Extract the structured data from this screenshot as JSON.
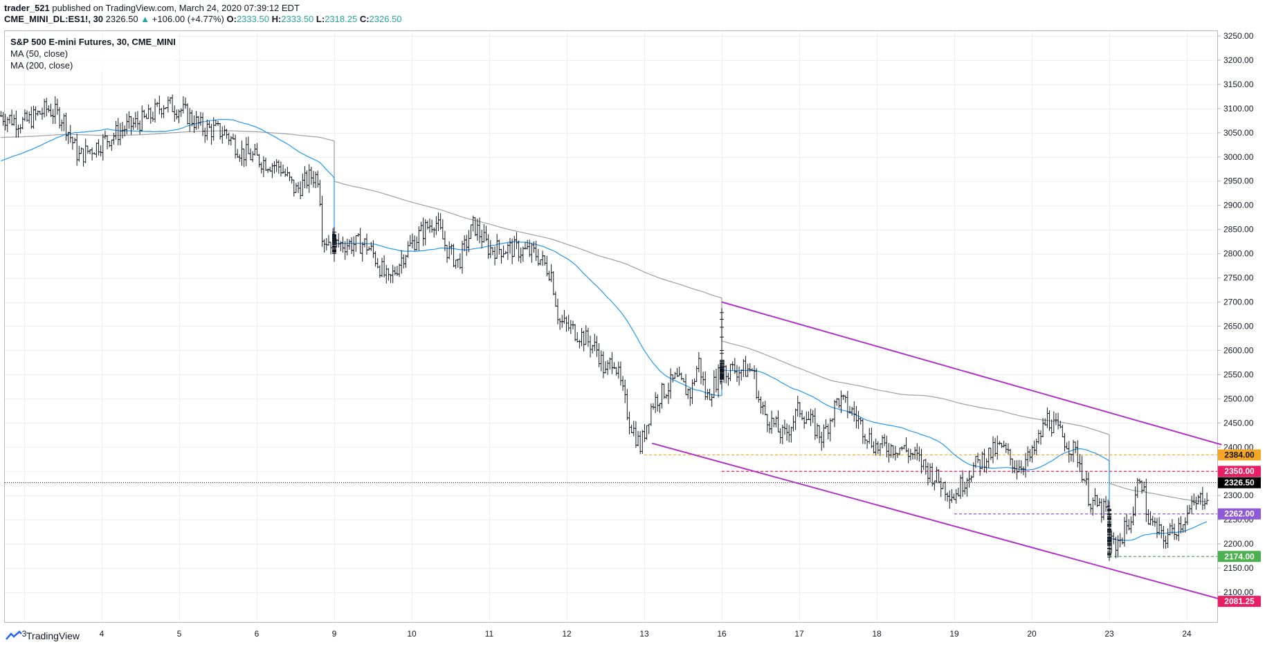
{
  "header": {
    "author": "trader_521",
    "published": "published on TradingView.com, March 24, 2020 07:39:12 EDT",
    "symbol": "CME_MINI_DL:ES1!, 30",
    "last": "2326.50",
    "change_arrow": "▲",
    "change": "+106.00 (+4.77%)",
    "o_label": "O:",
    "o": "2333.50",
    "h_label": "H:",
    "h": "2333.50",
    "l_label": "L:",
    "l": "2318.25",
    "c_label": "C:",
    "c": "2326.50"
  },
  "legend": {
    "title": "S&P 500 E-mini Futures, 30, CME_MINI",
    "ma50": "MA (50, close)",
    "ma200": "MA (200, close)"
  },
  "brand": {
    "label": "TradingView",
    "icon": "tradingview-logo-icon"
  },
  "colors": {
    "bars": "#131722",
    "ma50": "#2196f3",
    "ma200": "#9e9e9e",
    "channel": "#b030c8",
    "level_orange": "#f5a623",
    "level_pink": "#e91e63",
    "level_purple": "#8e5ad6",
    "level_green": "#4caf50",
    "last_price": "#000000"
  },
  "chart_data": {
    "type": "ohlc",
    "y_range": [
      2075,
      3260
    ],
    "y_ticks": [
      "3250.00",
      "3200.00",
      "3150.00",
      "3100.00",
      "3050.00",
      "3000.00",
      "2950.00",
      "2900.00",
      "2850.00",
      "2800.00",
      "2750.00",
      "2700.00",
      "2650.00",
      "2600.00",
      "2550.00",
      "2500.00",
      "2450.00",
      "2400.00",
      "2350.00",
      "2300.00",
      "2250.00",
      "2200.00",
      "2150.00",
      "2100.00"
    ],
    "x_ticks": [
      "3",
      "4",
      "5",
      "6",
      "9",
      "10",
      "11",
      "12",
      "13",
      "16",
      "17",
      "18",
      "19",
      "20",
      "23",
      "24"
    ],
    "last_price": "2326.50",
    "price_levels": [
      {
        "label": "2384.00",
        "value": 2384,
        "color": "#f5a623",
        "x_from": 13
      },
      {
        "label": "2350.00",
        "value": 2350,
        "color": "#e91e63",
        "x_from": 16
      },
      {
        "label": "2262.00",
        "value": 2262,
        "color": "#8e5ad6",
        "x_from": 19
      },
      {
        "label": "2174.00",
        "value": 2174,
        "color": "#4caf50",
        "x_from": 22
      },
      {
        "label": "2081.25",
        "value": 2081.25,
        "color": "#e91e63",
        "x_from": null
      }
    ],
    "channel": {
      "upper": [
        [
          14,
          2700
        ],
        [
          24.45,
          2405
        ]
      ],
      "lower": [
        [
          13.1,
          2408
        ],
        [
          24.45,
          2085
        ]
      ]
    },
    "price_path": [
      [
        2.7,
        3085
      ],
      [
        3.0,
        3070
      ],
      [
        3.3,
        3100
      ],
      [
        3.5,
        3080
      ],
      [
        3.7,
        3000
      ],
      [
        4.0,
        3030
      ],
      [
        4.3,
        3060
      ],
      [
        4.6,
        3080
      ],
      [
        4.8,
        3110
      ],
      [
        5.0,
        3100
      ],
      [
        5.3,
        3060
      ],
      [
        5.6,
        3050
      ],
      [
        5.8,
        3010
      ],
      [
        6.1,
        2990
      ],
      [
        6.3,
        2980
      ],
      [
        6.5,
        2930
      ],
      [
        6.7,
        2960
      ],
      [
        6.8,
        2960
      ],
      [
        6.85,
        2830
      ],
      [
        7.2,
        2820
      ],
      [
        9.4,
        2820
      ],
      [
        9.5,
        2800
      ],
      [
        9.7,
        2740
      ],
      [
        9.9,
        2800
      ],
      [
        10.1,
        2840
      ],
      [
        10.3,
        2870
      ],
      [
        10.45,
        2810
      ],
      [
        10.6,
        2780
      ],
      [
        10.8,
        2860
      ],
      [
        11.0,
        2810
      ],
      [
        11.3,
        2810
      ],
      [
        11.6,
        2800
      ],
      [
        11.8,
        2760
      ],
      [
        11.9,
        2660
      ],
      [
        12.2,
        2630
      ],
      [
        12.4,
        2600
      ],
      [
        12.5,
        2550
      ],
      [
        12.6,
        2590
      ],
      [
        12.8,
        2460
      ],
      [
        12.95,
        2400
      ],
      [
        13.1,
        2490
      ],
      [
        13.4,
        2540
      ],
      [
        13.6,
        2510
      ],
      [
        13.7,
        2580
      ],
      [
        13.8,
        2500
      ],
      [
        14.0,
        2560
      ],
      [
        14.05,
        2700
      ],
      [
        14.2,
        2560
      ],
      [
        14.9,
        2560
      ],
      [
        16.4,
        2560
      ],
      [
        16.5,
        2480
      ],
      [
        16.8,
        2420
      ],
      [
        17.0,
        2480
      ],
      [
        17.3,
        2420
      ],
      [
        17.5,
        2500
      ],
      [
        17.7,
        2470
      ],
      [
        17.9,
        2420
      ],
      [
        18.0,
        2400
      ],
      [
        18.3,
        2400
      ],
      [
        18.5,
        2380
      ],
      [
        18.8,
        2330
      ],
      [
        19.0,
        2300
      ],
      [
        19.2,
        2350
      ],
      [
        19.4,
        2380
      ],
      [
        19.6,
        2400
      ],
      [
        19.8,
        2360
      ],
      [
        20.0,
        2380
      ],
      [
        20.2,
        2460
      ],
      [
        20.4,
        2420
      ],
      [
        20.6,
        2380
      ],
      [
        20.75,
        2290
      ],
      [
        20.9,
        2270
      ],
      [
        22.8,
        2190
      ],
      [
        23.1,
        2200
      ],
      [
        23.3,
        2260
      ],
      [
        23.4,
        2350
      ],
      [
        23.5,
        2250
      ],
      [
        23.7,
        2210
      ],
      [
        23.9,
        2240
      ],
      [
        24.1,
        2280
      ],
      [
        24.3,
        2310
      ],
      [
        24.4,
        2326.5
      ]
    ]
  }
}
